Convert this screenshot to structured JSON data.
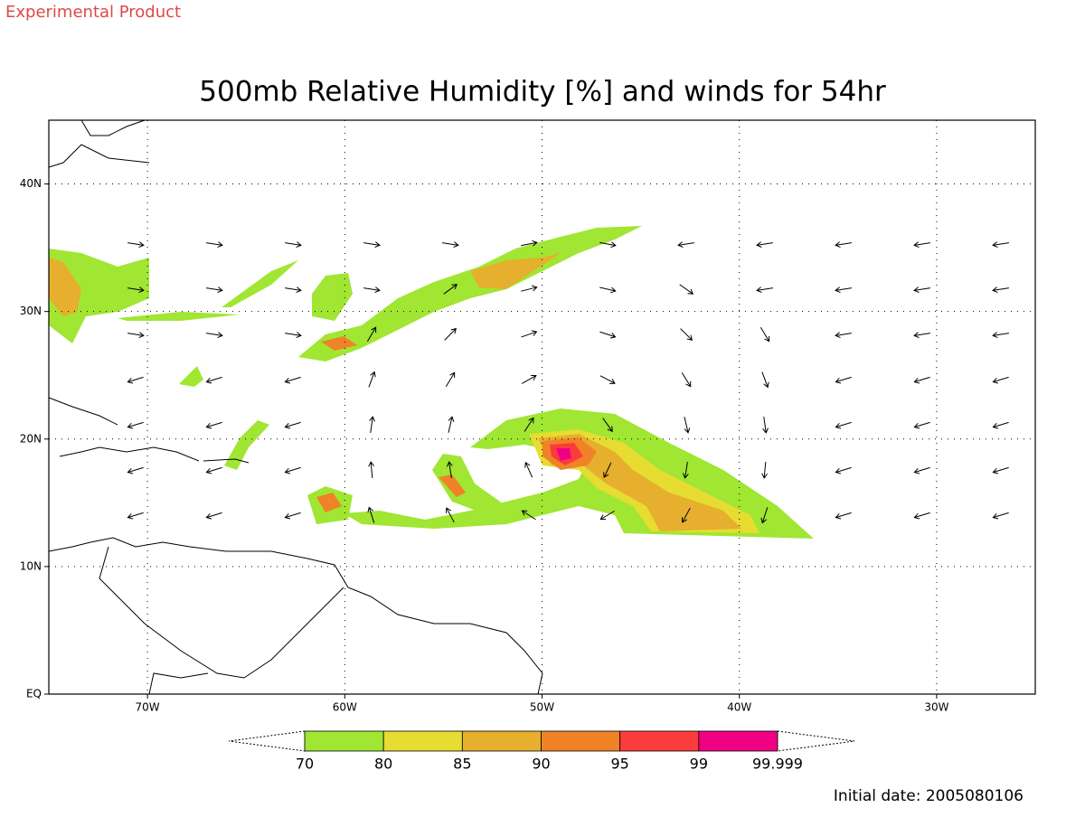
{
  "header": {
    "note": "Experimental Product",
    "title": "500mb Relative Humidity [%] and winds for 54hr"
  },
  "map": {
    "lon_range": [
      -75,
      -25
    ],
    "lat_range": [
      0,
      45
    ],
    "lat_ticks": [
      {
        "value": 0,
        "label": "EQ"
      },
      {
        "value": 10,
        "label": "10N"
      },
      {
        "value": 20,
        "label": "20N"
      },
      {
        "value": 30,
        "label": "30N"
      },
      {
        "value": 40,
        "label": "40N"
      }
    ],
    "lon_ticks": [
      {
        "value": -70,
        "label": "70W"
      },
      {
        "value": -60,
        "label": "60W"
      },
      {
        "value": -50,
        "label": "50W"
      },
      {
        "value": -40,
        "label": "40W"
      },
      {
        "value": -30,
        "label": "30W"
      }
    ],
    "grid": true
  },
  "colorbar": {
    "levels": [
      70,
      80,
      85,
      90,
      95,
      99,
      99.999
    ],
    "colors": [
      "#a0e632",
      "#e6dc32",
      "#e6af2d",
      "#f08228",
      "#fa3c3c",
      "#f00082"
    ]
  },
  "footer": {
    "initial_date": "Initial date: 2005080106"
  }
}
